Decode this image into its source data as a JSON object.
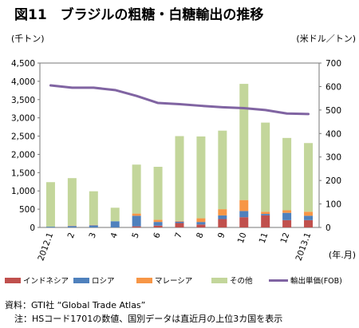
{
  "title": "図11　ブラジルの粗糖・白糖輸出の推移",
  "source_note": "資料：GTI社 “Global Trade Atlas”",
  "footnote": "注：HSコード1701の数値、国別データは直近月の上位3カ国を表示",
  "chart_data": {
    "type": "bar",
    "stacked": true,
    "title": "図11　ブラジルの粗糖・白糖輸出の推移",
    "categories": [
      "2012.1",
      "2",
      "3",
      "4",
      "5",
      "6",
      "7",
      "8",
      "9",
      "10",
      "11",
      "12",
      "2013.1"
    ],
    "xlabel": "(年.月)",
    "ylabel_left": "(千トン)",
    "ylabel_right": "(米ドル／トン)",
    "ylim_left": [
      0,
      4500
    ],
    "yticks_left": [
      0,
      500,
      1000,
      1500,
      2000,
      2500,
      3000,
      3500,
      4000,
      4500
    ],
    "ylim_right": [
      0,
      700
    ],
    "yticks_right": [
      0,
      100,
      200,
      300,
      400,
      500,
      600,
      700
    ],
    "grid": false,
    "legend_position": "bottom",
    "series": [
      {
        "name": "インドネシア",
        "color": "#c0504d",
        "values": [
          0,
          0,
          0,
          0,
          30,
          50,
          120,
          80,
          230,
          280,
          330,
          200,
          200
        ]
      },
      {
        "name": "ロシア",
        "color": "#4f81bd",
        "values": [
          20,
          40,
          60,
          170,
          290,
          100,
          40,
          70,
          100,
          170,
          40,
          200,
          120
        ]
      },
      {
        "name": "マレーシア",
        "color": "#f79646",
        "values": [
          0,
          10,
          10,
          0,
          60,
          60,
          20,
          100,
          170,
          300,
          60,
          70,
          110
        ]
      },
      {
        "name": "その他",
        "color": "#c3d69b",
        "values": [
          1220,
          1300,
          920,
          370,
          1340,
          1450,
          2320,
          2240,
          2150,
          3180,
          2440,
          1980,
          1880
        ]
      }
    ],
    "line_series": {
      "name": "輸出単価(FOB)",
      "color": "#8064a2",
      "axis": "right",
      "values": [
        605,
        595,
        595,
        585,
        560,
        530,
        525,
        518,
        512,
        508,
        500,
        485,
        483
      ]
    }
  }
}
